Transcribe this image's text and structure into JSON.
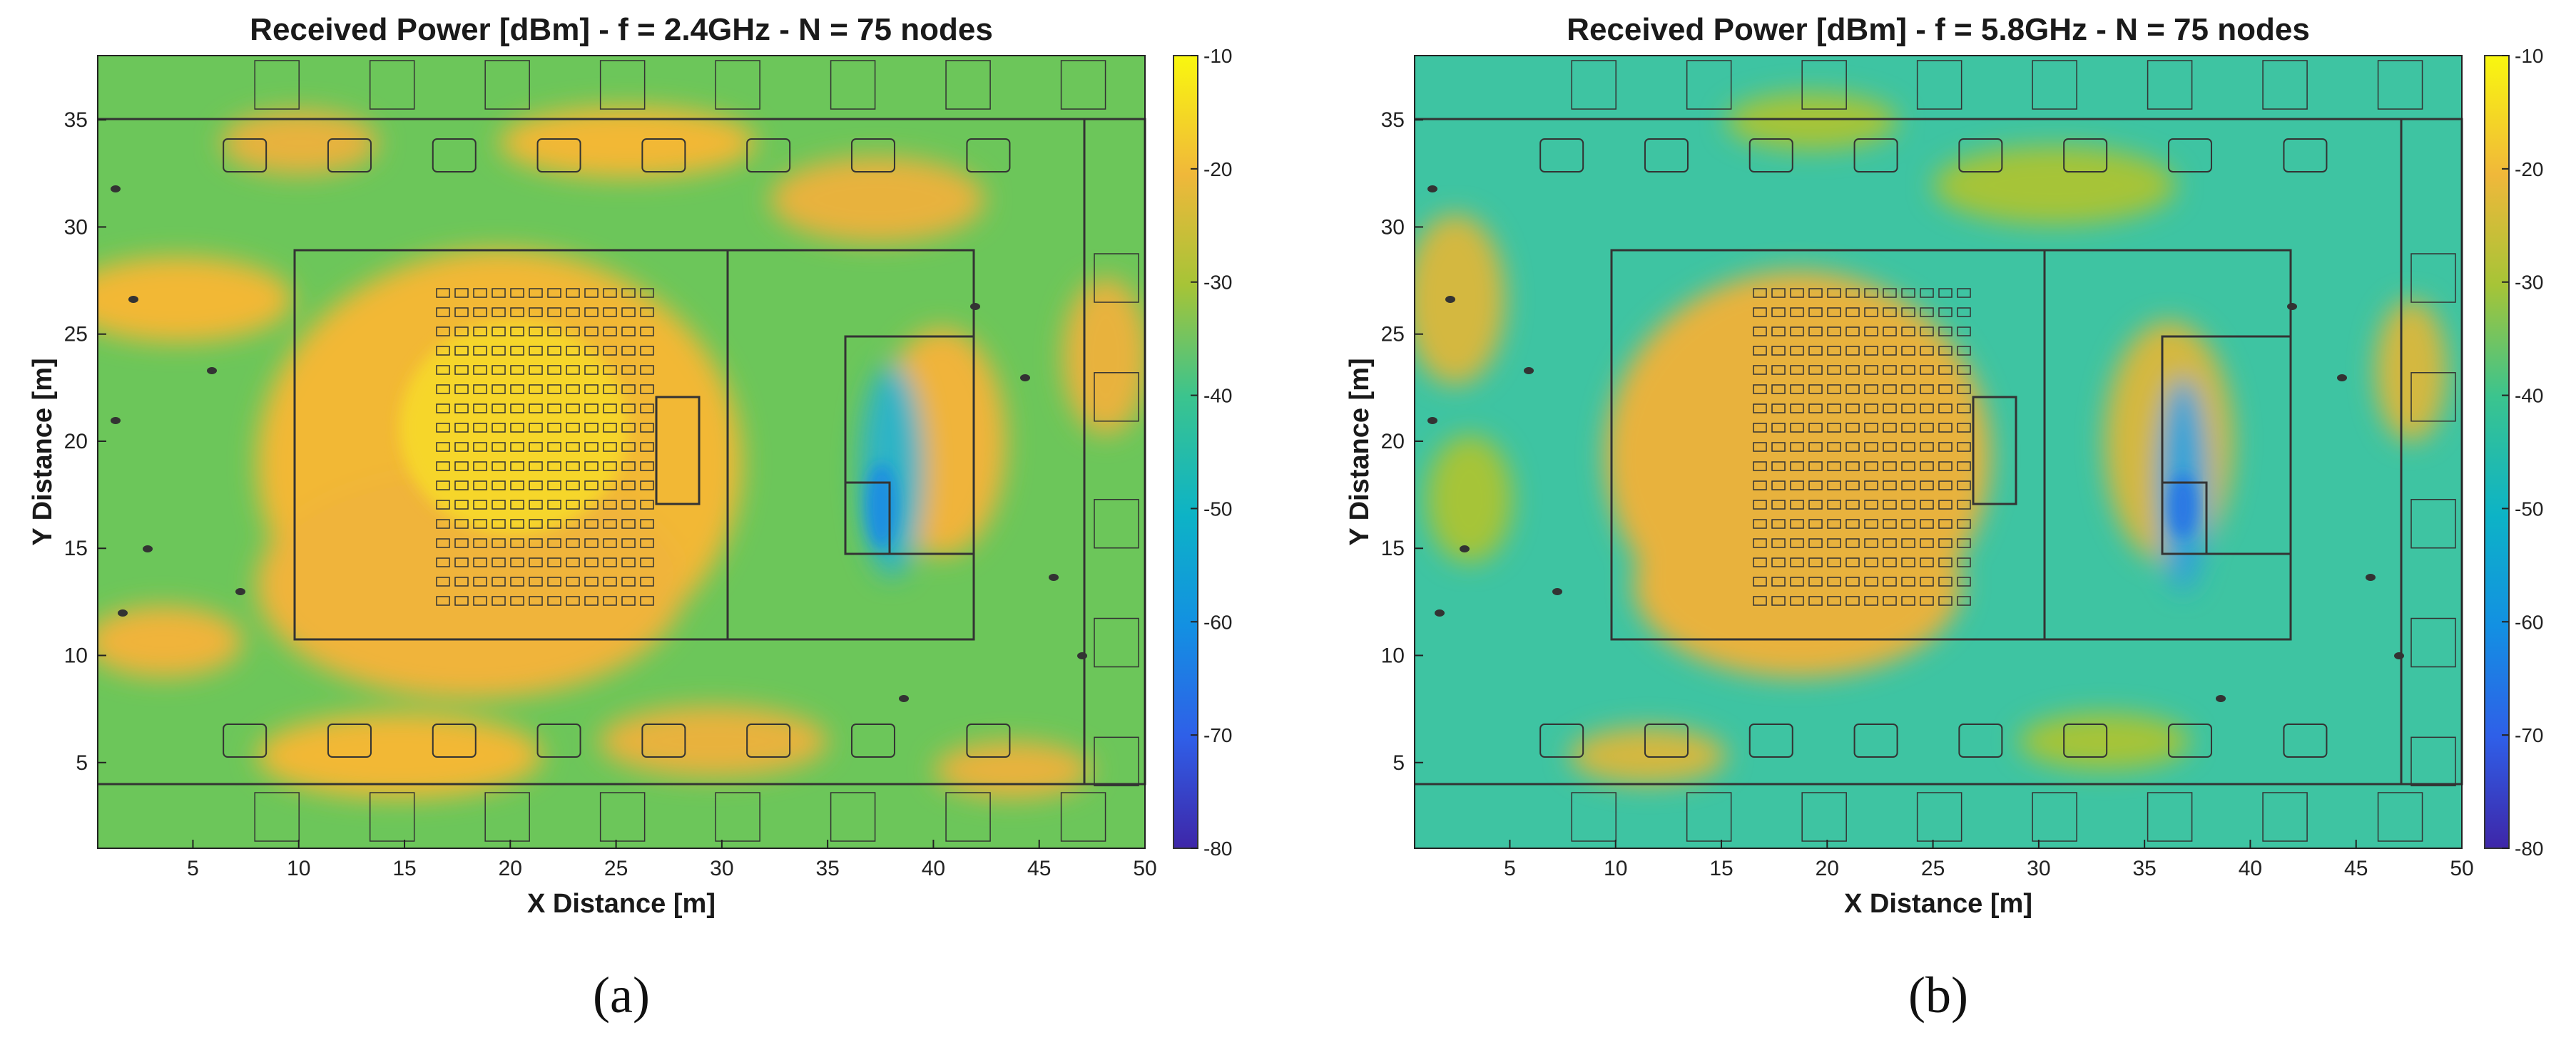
{
  "chart_data": [
    {
      "type": "heatmap",
      "title": "Received Power [dBm] - f = 2.4GHz - N = 75 nodes",
      "xlabel": "X Distance [m]",
      "ylabel": "Y Distance [m]",
      "xlim": [
        0.5,
        50
      ],
      "ylim": [
        1,
        38
      ],
      "xticks": [
        5,
        10,
        15,
        20,
        25,
        30,
        35,
        40,
        45,
        50
      ],
      "yticks": [
        5,
        10,
        15,
        20,
        25,
        30,
        35
      ],
      "colorbar": {
        "min": -80,
        "max": -10,
        "ticks": [
          -10,
          -20,
          -30,
          -40,
          -50,
          -60,
          -70,
          -80
        ],
        "colormap": "parula"
      },
      "typical_level_dbm": -30,
      "zones": [
        {
          "region": "central seating area",
          "x": [
            10,
            30
          ],
          "y": [
            11,
            29
          ],
          "level_dbm": -22
        },
        {
          "region": "right inner room",
          "x": [
            36,
            42
          ],
          "y": [
            14,
            25
          ],
          "level_dbm": -40
        },
        {
          "region": "left inner room edge",
          "x": [
            1,
            10
          ],
          "y": [
            25,
            29
          ],
          "level_dbm": -24
        }
      ],
      "caption": "(a)"
    },
    {
      "type": "heatmap",
      "title": "Received Power [dBm] - f = 5.8GHz - N = 75 nodes",
      "xlabel": "X Distance [m]",
      "ylabel": "Y Distance [m]",
      "xlim": [
        0.5,
        50
      ],
      "ylim": [
        1,
        38
      ],
      "xticks": [
        5,
        10,
        15,
        20,
        25,
        30,
        35,
        40,
        45,
        50
      ],
      "yticks": [
        5,
        10,
        15,
        20,
        25,
        30,
        35
      ],
      "colorbar": {
        "min": -80,
        "max": -10,
        "ticks": [
          -10,
          -20,
          -30,
          -40,
          -50,
          -60,
          -70,
          -80
        ],
        "colormap": "parula"
      },
      "typical_level_dbm": -38,
      "zones": [
        {
          "region": "central seating area",
          "x": [
            13,
            28
          ],
          "y": [
            12,
            28
          ],
          "level_dbm": -26
        },
        {
          "region": "right inner room",
          "x": [
            36,
            42
          ],
          "y": [
            14,
            25
          ],
          "level_dbm": -48
        }
      ],
      "caption": "(b)"
    }
  ]
}
